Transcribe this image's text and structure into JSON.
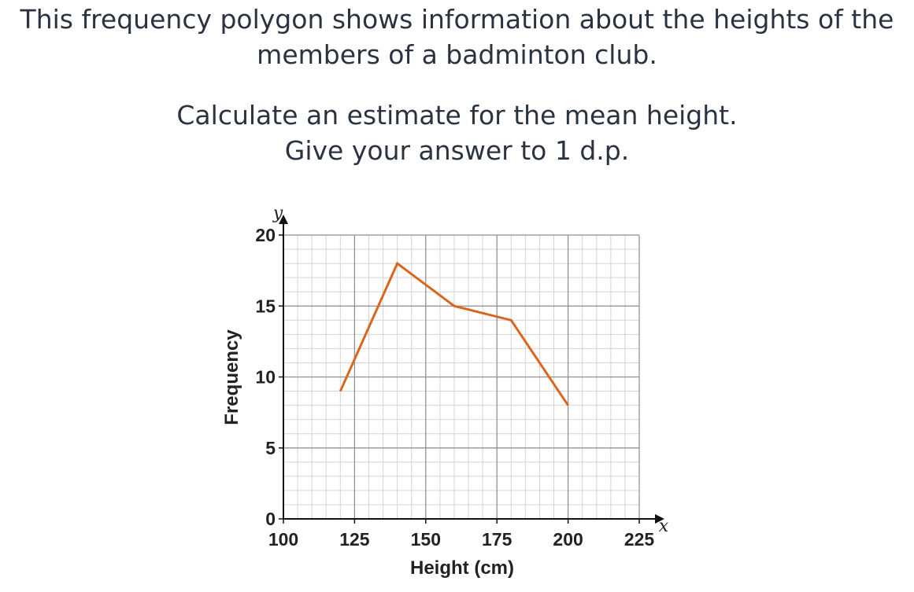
{
  "question": {
    "line1": "This frequency polygon shows information about the heights of the",
    "line2": "members of a badminton club.",
    "line3": "Calculate an estimate for the mean height.",
    "line4": "Give your answer to 1 d.p."
  },
  "chart_data": {
    "type": "line",
    "xlabel": "Height (cm)",
    "ylabel": "Frequency",
    "x_var": "x",
    "y_var": "y",
    "xlim": [
      100,
      225
    ],
    "ylim": [
      0,
      20
    ],
    "x_ticks": [
      100,
      125,
      150,
      175,
      200,
      225
    ],
    "y_ticks": [
      0,
      5,
      10,
      15,
      20
    ],
    "grid": true,
    "series": [
      {
        "x": [
          120,
          140,
          160,
          180,
          200
        ],
        "y": [
          9,
          18,
          15,
          14,
          8
        ],
        "color": "#d9661f"
      }
    ]
  }
}
